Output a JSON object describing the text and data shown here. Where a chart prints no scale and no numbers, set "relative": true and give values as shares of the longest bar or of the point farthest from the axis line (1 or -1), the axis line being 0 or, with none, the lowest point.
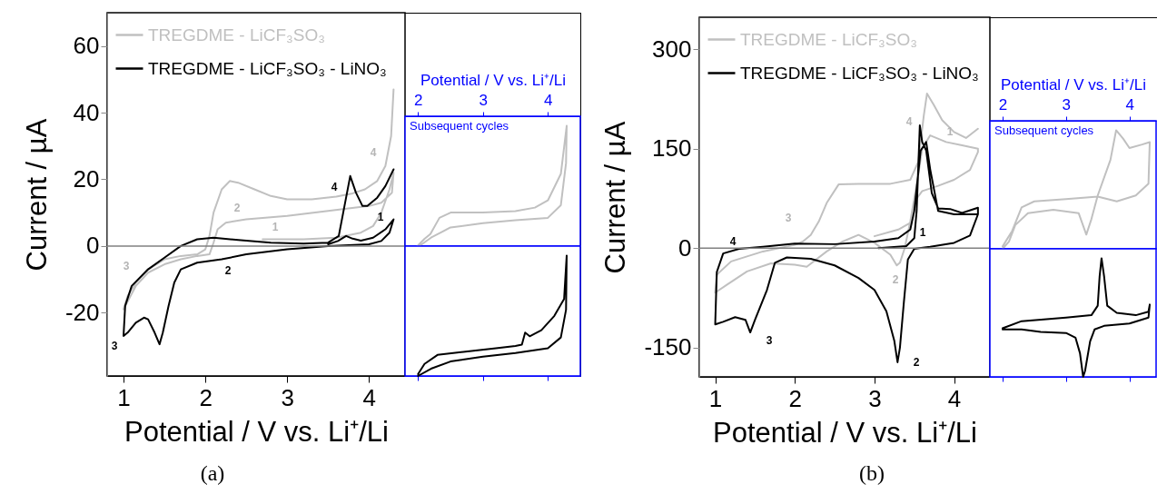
{
  "chart_data": [
    {
      "type": "line",
      "xlabel": "Potential / V vs. Li⁺/Li",
      "ylabel": "Current / µA",
      "xlim": [
        0.8,
        4.44
      ],
      "xticks": [
        1,
        2,
        3,
        4
      ],
      "ylim": [
        -39,
        70
      ],
      "yticks": [
        -20,
        0,
        20,
        40,
        60
      ],
      "grid": false,
      "legend": "top left",
      "ref_lines": [
        {
          "axis": "y",
          "value": 0,
          "color": "#808080"
        }
      ],
      "series": [
        {
          "name": "TREGDME - LiCF₃SO₃",
          "color": "#c0c0c0",
          "x": [
            2.7,
            3.2,
            3.6,
            3.9,
            4.05,
            4.15,
            4.25,
            4.3,
            4.28,
            4.15,
            4.0,
            3.5,
            3.0,
            2.5,
            2.25,
            2.15,
            2.1,
            2.05,
            1.9,
            1.7,
            1.5,
            1.3,
            1.15,
            1.0,
            1.05,
            1.15,
            1.3,
            1.5,
            1.7,
            1.9,
            2.0,
            2.05,
            2.1,
            2.2,
            2.3,
            2.4,
            2.6,
            2.8,
            3.0,
            3.3,
            3.6,
            3.8,
            3.95,
            4.1,
            4.2,
            4.27,
            4.3
          ],
          "values": [
            2,
            2,
            2.5,
            4,
            6,
            10,
            17,
            22,
            16,
            13,
            12,
            10.5,
            9,
            8,
            7,
            5,
            1,
            -2.5,
            -3,
            -4,
            -5.5,
            -8,
            -12,
            -19,
            -15,
            -11,
            -7,
            -4,
            -3,
            -2.5,
            -1,
            3,
            10,
            17,
            19.5,
            19,
            17,
            15,
            14,
            14,
            14.8,
            15.8,
            17,
            19.5,
            24,
            33,
            47
          ]
        },
        {
          "name": "TREGDME - LiCF₃SO₃ - LiNO₃",
          "color": "#000000",
          "x": [
            3.5,
            3.62,
            3.72,
            3.8,
            3.9,
            4.05,
            4.2,
            4.3,
            4.25,
            4.15,
            4.0,
            3.5,
            3.0,
            2.5,
            2.2,
            1.9,
            1.7,
            1.62,
            1.55,
            1.48,
            1.44,
            1.38,
            1.3,
            1.25,
            1.15,
            1.05,
            1.0,
            1.02,
            1.1,
            1.3,
            1.5,
            1.7,
            1.9,
            2.1,
            2.4,
            2.8,
            3.2,
            3.5,
            3.63,
            3.7,
            3.77,
            3.84,
            3.92,
            3.98,
            4.1,
            4.2,
            4.3
          ],
          "values": [
            0.5,
            1.5,
            3,
            2.2,
            1.6,
            2.5,
            5,
            8,
            4,
            1.5,
            0.5,
            0,
            -1,
            -2.5,
            -4,
            -5,
            -7,
            -11,
            -18,
            -26,
            -29.5,
            -26,
            -22,
            -21.5,
            -23,
            -26,
            -27,
            -18,
            -12,
            -7,
            -3.5,
            0,
            2,
            2.5,
            1.8,
            1,
            0.7,
            1,
            3,
            12,
            21,
            16,
            12,
            12,
            14.5,
            18,
            23
          ]
        }
      ],
      "annotations": [
        "1",
        "2",
        "3",
        "4",
        "1",
        "2",
        "3",
        "4",
        "(a)"
      ]
    },
    {
      "type": "line",
      "relative": true,
      "xlabel": "Potential / V vs. Li⁺/Li",
      "xlim": [
        1.8,
        4.5
      ],
      "xticks": [
        2,
        3,
        4
      ],
      "annotations": [
        "Subsequent cycles"
      ],
      "series": [
        {
          "color": "#c0c0c0",
          "x": [
            1.99,
            2.1,
            2.19,
            2.33,
            2.51,
            3.0,
            3.5,
            3.8,
            4.0,
            4.2,
            4.29,
            4.28,
            4.2,
            4.0,
            3.5,
            3.0,
            2.5,
            2.2,
            2.02
          ],
          "values": [
            0,
            0.06,
            0.1,
            0.235,
            0.28,
            0.28,
            0.29,
            0.32,
            0.38,
            0.6,
            1,
            0.69,
            0.34,
            0.235,
            0.215,
            0.19,
            0.155,
            0.07,
            0
          ]
        }
      ]
    },
    {
      "type": "line",
      "relative": true,
      "xlim": [
        1.8,
        4.5
      ],
      "xticks": [
        2,
        3,
        4
      ],
      "tick_labels": false,
      "series": [
        {
          "color": "#000000",
          "x": [
            2.0,
            2.1,
            2.3,
            2.7,
            3.2,
            3.5,
            3.6,
            3.65,
            3.72,
            3.9,
            4.1,
            4.25,
            4.29,
            4.28,
            4.2,
            4.0,
            3.5,
            3.0,
            2.5,
            2.2,
            2.0
          ],
          "values": [
            0.015,
            0.1,
            0.175,
            0.2,
            0.23,
            0.25,
            0.26,
            0.36,
            0.33,
            0.38,
            0.5,
            0.64,
            1,
            0.55,
            0.32,
            0.23,
            0.19,
            0.16,
            0.12,
            0.06,
            0
          ]
        }
      ]
    },
    {
      "type": "line",
      "xlabel": "Potential / V vs. Li⁺/Li",
      "ylabel": "Current / µA",
      "xlim": [
        0.8,
        4.45
      ],
      "xticks": [
        1,
        2,
        3,
        4
      ],
      "ylim": [
        -194,
        348
      ],
      "yticks": [
        -150,
        0,
        150,
        300
      ],
      "grid": false,
      "legend": "top left",
      "ref_lines": [
        {
          "axis": "y",
          "value": 0,
          "color": "#808080"
        }
      ],
      "series": [
        {
          "name": "TREGDME - LiCF₃SO₃",
          "color": "#c0c0c0",
          "x": [
            3.0,
            3.3,
            3.45,
            3.5,
            3.6,
            3.8,
            4.0,
            4.2,
            4.3,
            4.3,
            4.1,
            3.9,
            3.7,
            3.6,
            3.55,
            3.45,
            3.38,
            3.32,
            3.28,
            3.2,
            3.0,
            2.8,
            2.6,
            2.4,
            2.15,
            2.0,
            1.7,
            1.4,
            1.15,
            1.0,
            1.02,
            1.2,
            1.6,
            2.0,
            2.1,
            2.2,
            2.3,
            2.4,
            2.55,
            2.8,
            3.2,
            3.45,
            3.55,
            3.62,
            3.66,
            3.75,
            3.85,
            4.0,
            4.15,
            4.3
          ],
          "values": [
            18,
            28,
            38,
            70,
            86,
            94,
            103,
            118,
            145,
            150,
            155,
            160,
            170,
            150,
            110,
            40,
            0,
            -22,
            -26,
            -10,
            8,
            20,
            10,
            -5,
            -28,
            -25,
            -23,
            -35,
            -55,
            -67,
            -40,
            -20,
            -5,
            5,
            10,
            20,
            40,
            68,
            96,
            97,
            97,
            103,
            130,
            200,
            233,
            215,
            193,
            175,
            166,
            180
          ]
        },
        {
          "name": "TREGDME - LiCF₃SO₃ - LiNO₃",
          "color": "#000000",
          "x": [
            3.05,
            3.4,
            3.5,
            3.53,
            3.57,
            3.6,
            3.65,
            3.72,
            3.8,
            3.95,
            4.1,
            4.3,
            4.3,
            4.2,
            4.0,
            3.7,
            3.5,
            3.42,
            3.37,
            3.32,
            3.29,
            3.25,
            3.15,
            3.0,
            2.8,
            2.5,
            2.2,
            1.9,
            1.75,
            1.65,
            1.5,
            1.44,
            1.38,
            1.25,
            1.1,
            1.0,
            1.02,
            1.1,
            1.3,
            1.6,
            2.0,
            2.5,
            3.0,
            3.3,
            3.45,
            3.5,
            3.58,
            3.65,
            3.7,
            3.8,
            4.0,
            4.3
          ],
          "values": [
            0,
            3,
            15,
            56,
            185,
            160,
            147,
            83,
            60,
            59,
            53,
            61,
            51,
            19,
            8,
            2,
            -1,
            -17,
            -81,
            -150,
            -172,
            -140,
            -95,
            -63,
            -45,
            -26,
            -16,
            -14,
            -22,
            -63,
            -108,
            -127,
            -108,
            -104,
            -111,
            -115,
            -36,
            -8,
            -1,
            2,
            7,
            6,
            10,
            15,
            28,
            56,
            147,
            160,
            119,
            56,
            51,
            51
          ]
        }
      ],
      "annotations": [
        "1",
        "2",
        "3",
        "4",
        "1",
        "2",
        "3",
        "4",
        "(b)"
      ]
    },
    {
      "type": "line",
      "relative": true,
      "xlabel": "Potential / V vs. Li⁺/Li",
      "xlim": [
        1.8,
        4.42
      ],
      "xticks": [
        2,
        3,
        4
      ],
      "annotations": [
        "Subsequent cycles"
      ],
      "series": [
        {
          "color": "#c0c0c0",
          "x": [
            2.0,
            2.1,
            2.2,
            2.4,
            2.8,
            3.2,
            3.32,
            3.4,
            3.5,
            3.7,
            3.79,
            3.9,
            4.0,
            4.2,
            4.32,
            4.3,
            4.1,
            3.8,
            3.5,
            3.0,
            2.5,
            2.3,
            2.15,
            2.0
          ],
          "values": [
            0,
            0.06,
            0.2,
            0.3,
            0.33,
            0.3,
            0.12,
            0.25,
            0.45,
            0.75,
            1,
            0.93,
            0.85,
            0.88,
            0.9,
            0.55,
            0.45,
            0.4,
            0.44,
            0.42,
            0.4,
            0.35,
            0.15,
            0.02
          ]
        }
      ]
    },
    {
      "type": "line",
      "relative": true,
      "xlim": [
        1.8,
        4.42
      ],
      "xticks": [
        2,
        3,
        4
      ],
      "tick_labels": false,
      "series": [
        {
          "color": "#000000",
          "x": [
            2.0,
            2.3,
            3.0,
            3.4,
            3.5,
            3.53,
            3.56,
            3.6,
            3.65,
            3.8,
            4.1,
            4.3,
            4.32,
            4.3,
            4.0,
            3.6,
            3.45,
            3.38,
            3.3,
            3.27,
            3.22,
            3.15,
            3.0,
            2.6,
            2.3,
            2.0
          ],
          "values": [
            0.41,
            0.47,
            0.5,
            0.52,
            0.6,
            0.85,
            1,
            0.85,
            0.6,
            0.54,
            0.52,
            0.55,
            0.61,
            0.5,
            0.45,
            0.43,
            0.4,
            0.3,
            0.05,
            0,
            0.2,
            0.33,
            0.37,
            0.38,
            0.4,
            0.4
          ]
        }
      ]
    }
  ]
}
